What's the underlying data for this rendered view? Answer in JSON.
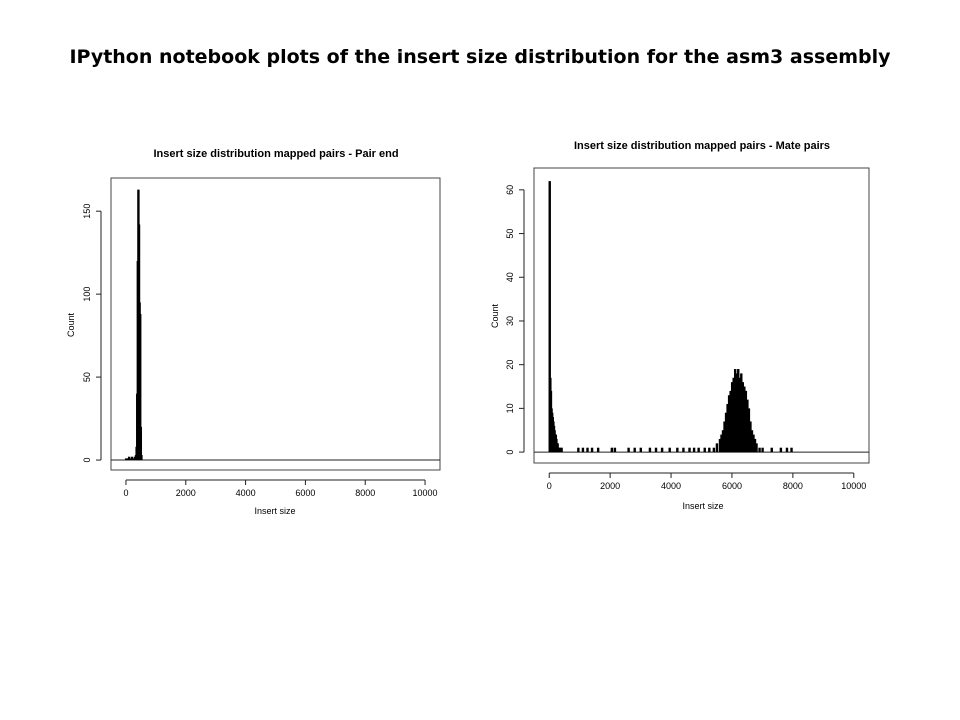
{
  "slide": {
    "title": "IPython notebook plots of the insert size distribution for the asm3 assembly"
  },
  "chart_data": [
    {
      "type": "bar",
      "title": "Insert size distribution mapped pairs - Pair end",
      "xlabel": "Insert size",
      "ylabel": "Count",
      "xlim": [
        -500,
        10500
      ],
      "ylim": [
        -6,
        170
      ],
      "xticks": [
        0,
        2000,
        4000,
        6000,
        8000,
        10000
      ],
      "yticks": [
        0,
        50,
        100,
        150
      ],
      "grid": false,
      "bar_color": "#000000",
      "x": [
        0,
        50,
        100,
        150,
        200,
        250,
        300,
        330,
        350,
        370,
        390,
        410,
        430,
        450,
        470,
        490,
        510
      ],
      "values": [
        1,
        1,
        2,
        1,
        2,
        1,
        2,
        3,
        8,
        40,
        120,
        163,
        142,
        95,
        88,
        20,
        3
      ]
    },
    {
      "type": "bar",
      "title": "Insert size distribution mapped pairs - Mate pairs",
      "xlabel": "Insert size",
      "ylabel": "Count",
      "xlim": [
        -500,
        10500
      ],
      "ylim": [
        -2.5,
        65
      ],
      "xticks": [
        0,
        2000,
        4000,
        6000,
        8000,
        10000
      ],
      "yticks": [
        0,
        10,
        20,
        30,
        40,
        50,
        60
      ],
      "grid": false,
      "bar_color": "#000000",
      "x": [
        10,
        30,
        50,
        70,
        90,
        110,
        130,
        150,
        170,
        190,
        210,
        230,
        250,
        270,
        290,
        320,
        360,
        400,
        950,
        1100,
        1250,
        1400,
        1600,
        2050,
        2150,
        2600,
        2800,
        3000,
        3300,
        3500,
        3700,
        3950,
        4200,
        4400,
        4600,
        4750,
        4900,
        5100,
        5250,
        5400,
        5500,
        5600,
        5650,
        5700,
        5750,
        5800,
        5850,
        5900,
        5950,
        6000,
        6050,
        6100,
        6150,
        6200,
        6250,
        6300,
        6350,
        6400,
        6450,
        6500,
        6550,
        6600,
        6650,
        6700,
        6750,
        6800,
        6900,
        7000,
        7300,
        7600,
        7800,
        7950
      ],
      "values": [
        62,
        17,
        14,
        10,
        9,
        8,
        7,
        6,
        5,
        4,
        4,
        3,
        2,
        2,
        1,
        1,
        1,
        1,
        1,
        1,
        1,
        1,
        1,
        1,
        1,
        1,
        1,
        1,
        1,
        1,
        1,
        1,
        1,
        1,
        1,
        1,
        1,
        1,
        1,
        1,
        2,
        3,
        4,
        5,
        7,
        9,
        11,
        13,
        14,
        16,
        17,
        19,
        18,
        19,
        17,
        18,
        16,
        15,
        14,
        12,
        10,
        7,
        5,
        4,
        3,
        2,
        1,
        1,
        1,
        1,
        1,
        1
      ]
    }
  ]
}
